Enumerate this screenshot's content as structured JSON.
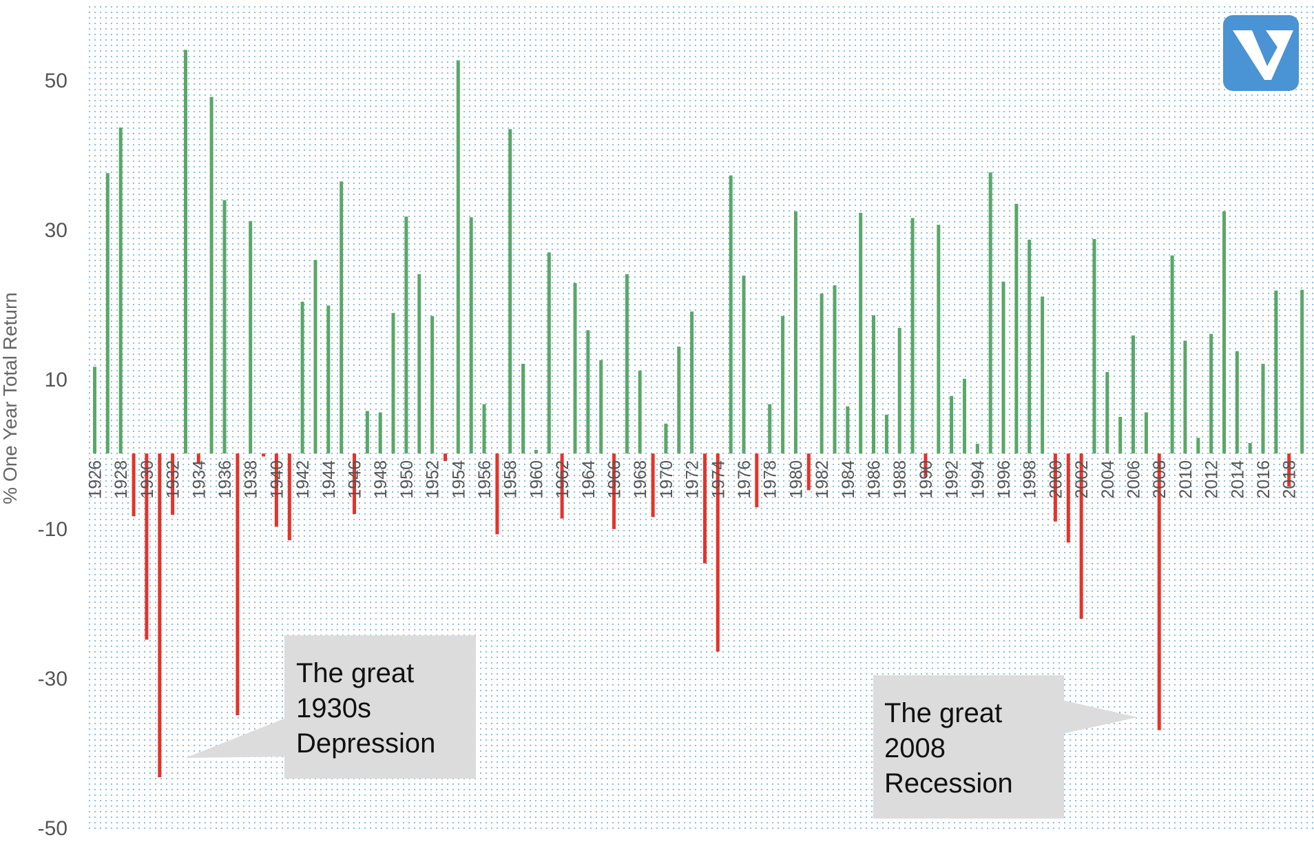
{
  "chart_data": {
    "type": "bar",
    "ylabel": "% One Year Total Return",
    "ylim": [
      -50,
      60
    ],
    "yticks": [
      50,
      30,
      10,
      -10,
      -30,
      -50
    ],
    "grid": "dotted",
    "x": [
      1926,
      1927,
      1928,
      1929,
      1930,
      1931,
      1932,
      1933,
      1934,
      1935,
      1936,
      1937,
      1938,
      1939,
      1940,
      1941,
      1942,
      1943,
      1944,
      1945,
      1946,
      1947,
      1948,
      1949,
      1950,
      1951,
      1952,
      1953,
      1954,
      1955,
      1956,
      1957,
      1958,
      1959,
      1960,
      1961,
      1962,
      1963,
      1964,
      1965,
      1966,
      1967,
      1968,
      1969,
      1970,
      1971,
      1972,
      1973,
      1974,
      1975,
      1976,
      1977,
      1978,
      1979,
      1980,
      1981,
      1982,
      1983,
      1984,
      1985,
      1986,
      1987,
      1988,
      1989,
      1990,
      1991,
      1992,
      1993,
      1994,
      1995,
      1996,
      1997,
      1998,
      1999,
      2000,
      2001,
      2002,
      2003,
      2004,
      2005,
      2006,
      2007,
      2008,
      2009,
      2010,
      2011,
      2012,
      2013,
      2014,
      2015,
      2016,
      2017,
      2018,
      2019
    ],
    "x_tick_labels": [
      "1926",
      "1928",
      "1930",
      "1932",
      "1934",
      "1936",
      "1938",
      "1940",
      "1942",
      "1944",
      "1946",
      "1948",
      "1950",
      "1952",
      "1954",
      "1956",
      "1958",
      "1960",
      "1962",
      "1964",
      "1966",
      "1968",
      "1970",
      "1972",
      "1974",
      "1976",
      "1978",
      "1980",
      "1982",
      "1984",
      "1986",
      "1988",
      "1990",
      "1992",
      "1994",
      "1996",
      "1998",
      "2000",
      "2002",
      "2004",
      "2006",
      "2008",
      "2010",
      "2012",
      "2014",
      "2016",
      "2018"
    ],
    "values": [
      11.6,
      37.5,
      43.6,
      -8.4,
      -24.9,
      -43.3,
      -8.2,
      54.0,
      -1.4,
      47.7,
      33.9,
      -35.0,
      31.1,
      -0.4,
      -9.8,
      -11.6,
      20.3,
      25.9,
      19.8,
      36.4,
      -8.1,
      5.7,
      5.5,
      18.8,
      31.7,
      24.0,
      18.4,
      -1.0,
      52.6,
      31.6,
      6.6,
      -10.8,
      43.4,
      12.0,
      0.5,
      26.9,
      -8.7,
      22.8,
      16.5,
      12.5,
      -10.1,
      24.0,
      11.1,
      -8.5,
      4.0,
      14.3,
      19.0,
      -14.7,
      -26.5,
      37.2,
      23.8,
      -7.2,
      6.6,
      18.4,
      32.4,
      -4.9,
      21.4,
      22.5,
      6.3,
      32.2,
      18.5,
      5.2,
      16.8,
      31.5,
      -3.1,
      30.6,
      7.7,
      10.0,
      1.3,
      37.6,
      23.0,
      33.4,
      28.6,
      21.0,
      -9.1,
      -11.9,
      -22.1,
      28.7,
      10.9,
      4.9,
      15.8,
      5.5,
      -37.0,
      26.5,
      15.1,
      2.1,
      16.0,
      32.4,
      13.7,
      1.4,
      12.0,
      21.8,
      -4.4,
      21.9
    ],
    "positive_color": "#5aa768",
    "negative_color": "#e5332a"
  },
  "annotations": [
    {
      "lines": [
        "The great",
        "1930s",
        "Depression"
      ]
    },
    {
      "lines": [
        "The great",
        "2008",
        "Recession"
      ]
    }
  ],
  "logo": {
    "icon": "v-logo-icon",
    "color": "#4a93d4"
  }
}
